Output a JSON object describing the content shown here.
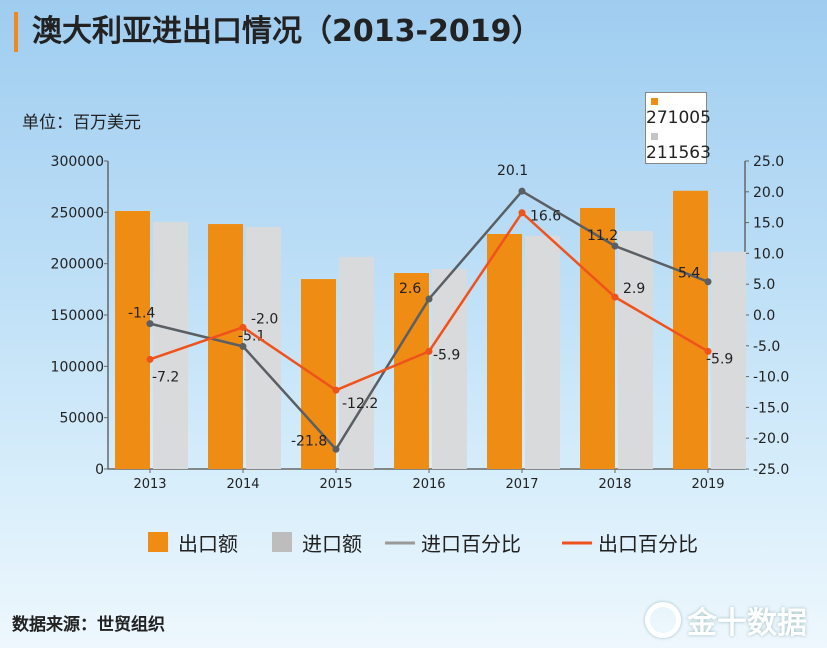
{
  "title": "澳大利亚进出口情况（2013-2019）",
  "unit_label": "单位：百万美元",
  "source": "数据来源：世贸组织",
  "logo_text": "金十数据",
  "tooltip": {
    "export_value": "271005",
    "import_value": "211563"
  },
  "chart_data": {
    "type": "bar+line",
    "categories": [
      "2013",
      "2014",
      "2015",
      "2016",
      "2017",
      "2018",
      "2019"
    ],
    "left_axis": {
      "ylim": [
        0,
        300000
      ],
      "ticks": [
        0,
        50000,
        100000,
        150000,
        200000,
        250000,
        300000
      ]
    },
    "right_axis": {
      "ylim": [
        -25,
        25
      ],
      "ticks": [
        "-25.0",
        "-20.0",
        "-15.0",
        "-10.0",
        "-5.0",
        "0.0",
        "5.0",
        "10.0",
        "15.0",
        "20.0",
        "25.0"
      ]
    },
    "series": [
      {
        "name": "出口额",
        "type": "bar",
        "axis": "left",
        "color": "#ee8c14",
        "values": [
          251300,
          238600,
          185000,
          190900,
          228900,
          254200,
          271005
        ]
      },
      {
        "name": "进口额",
        "type": "bar",
        "axis": "left",
        "color": "#d9dadc",
        "values": [
          240600,
          235700,
          206500,
          194800,
          227000,
          231800,
          211563
        ]
      },
      {
        "name": "进口百分比",
        "type": "line",
        "axis": "right",
        "color": "#5a5f63",
        "values": [
          -1.4,
          -5.1,
          -21.8,
          2.6,
          20.1,
          11.2,
          5.4
        ]
      },
      {
        "name": "出口百分比",
        "type": "line",
        "axis": "right",
        "color": "#f0521c",
        "values": [
          -7.2,
          -2.0,
          -12.2,
          -5.9,
          16.6,
          2.9,
          -5.9
        ]
      }
    ],
    "legend": "bottom",
    "grid": false
  }
}
